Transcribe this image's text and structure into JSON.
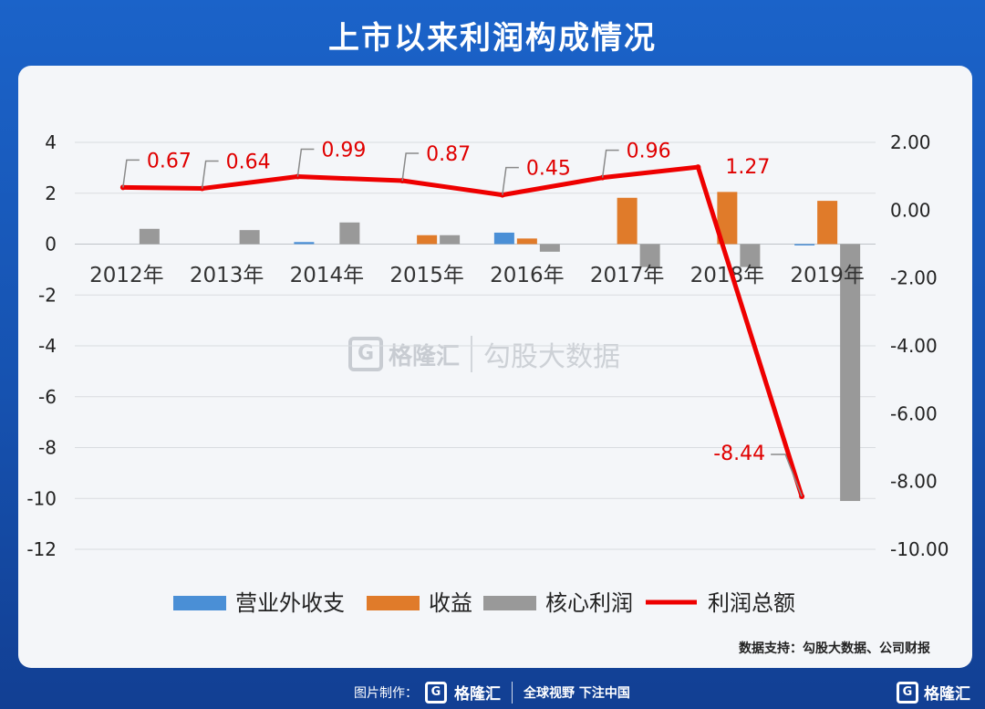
{
  "title": "上市以来利润构成情况",
  "watermark": {
    "logo": "G",
    "brand": "格隆汇",
    "text": "勾股大数据"
  },
  "source": "数据支持：勾股大数据、公司财报",
  "footer": {
    "label": "图片制作：",
    "logo": "G",
    "brand": "格隆汇",
    "slogan": "全球视野 下注中国",
    "right_logo": "G",
    "right_brand": "格隆汇"
  },
  "chart_data": {
    "type": "bar",
    "categories": [
      "2012年",
      "2013年",
      "2014年",
      "2015年",
      "2016年",
      "2017年",
      "2018年",
      "2019年"
    ],
    "y_left": {
      "ylim": [
        -12,
        4
      ],
      "ticks": [
        "4",
        "2",
        "0",
        "-2",
        "-4",
        "-6",
        "-8",
        "-10",
        "-12"
      ]
    },
    "y_right": {
      "ylim": [
        -10,
        2
      ],
      "ticks": [
        "2.00",
        "0.00",
        "-2.00",
        "-4.00",
        "-6.00",
        "-8.00",
        "-10.00"
      ]
    },
    "series": [
      {
        "name": "营业外收支",
        "type": "bar",
        "axis": "left",
        "color": "#4a8fd6",
        "values": [
          0,
          0,
          0.08,
          0,
          0.45,
          0,
          0,
          -0.05
        ]
      },
      {
        "name": "收益",
        "type": "bar",
        "axis": "left",
        "color": "#e07b2a",
        "values": [
          0,
          0,
          0,
          0.35,
          0.22,
          1.82,
          2.05,
          1.7
        ]
      },
      {
        "name": "核心利润",
        "type": "bar",
        "axis": "left",
        "color": "#999999",
        "values": [
          0.6,
          0.55,
          0.85,
          0.35,
          -0.3,
          -0.9,
          -0.9,
          -10.1
        ]
      },
      {
        "name": "利润总额",
        "type": "line",
        "axis": "right",
        "color": "#ee0000",
        "values": [
          0.67,
          0.64,
          0.99,
          0.87,
          0.45,
          0.96,
          1.27,
          -8.44
        ],
        "labels": [
          "0.67",
          "0.64",
          "0.99",
          "0.87",
          "0.45",
          "0.96",
          "1.27",
          "-8.44"
        ]
      }
    ],
    "legend_position": "bottom",
    "grid": true
  }
}
